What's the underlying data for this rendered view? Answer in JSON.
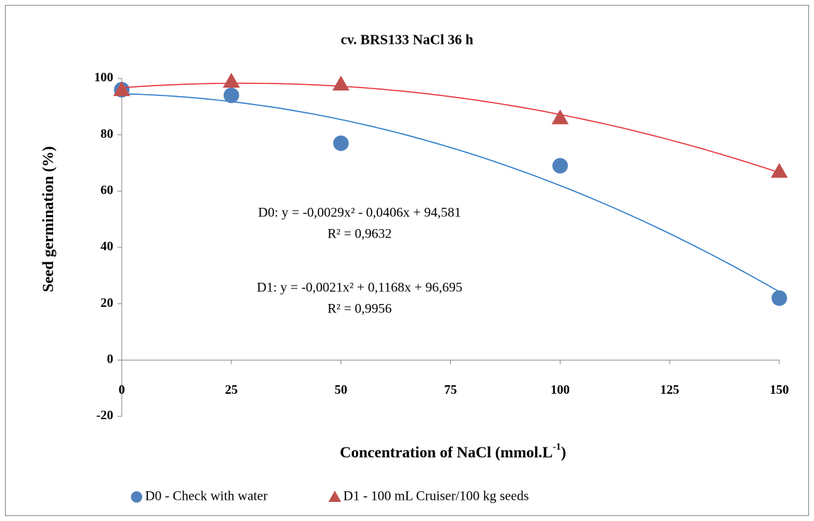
{
  "chart_data": {
    "type": "scatter",
    "title": "cv. BRS133 NaCl 36 h",
    "x_label": [
      "Concentration of NaCl (mmol.L",
      "-1",
      ")"
    ],
    "y_label": "Seed germination  (%)",
    "xlim": [
      0,
      150
    ],
    "xticks": [
      0,
      25,
      50,
      75,
      100,
      125,
      150
    ],
    "ylim": [
      -20,
      100
    ],
    "yticks": [
      -20,
      0,
      20,
      40,
      60,
      80,
      100
    ],
    "grid": false,
    "legend": "bottom",
    "trendline": "polynomial-2",
    "series": [
      {
        "name": "D0 - Check with water",
        "color": "#4f81bd",
        "marker": "circle",
        "trend_color": "#2b7bc9",
        "x": [
          0,
          25,
          50,
          100,
          150
        ],
        "values": [
          96,
          94,
          77,
          69,
          22
        ]
      },
      {
        "name": "D1 - 100 mL Cruiser/100 kg seeds",
        "color": "#c0504d",
        "marker": "triangle",
        "trend_color": "#e8333b",
        "x": [
          0,
          25,
          50,
          100,
          150
        ],
        "values": [
          96,
          99,
          98,
          86,
          67
        ]
      }
    ],
    "annotations": [
      "D0: y = -0,0029x² - 0,0406x + 94,581",
      "R² = 0,9632",
      "D1: y = -0,0021x² + 0,1168x + 96,695",
      "R² = 0,9956"
    ]
  }
}
